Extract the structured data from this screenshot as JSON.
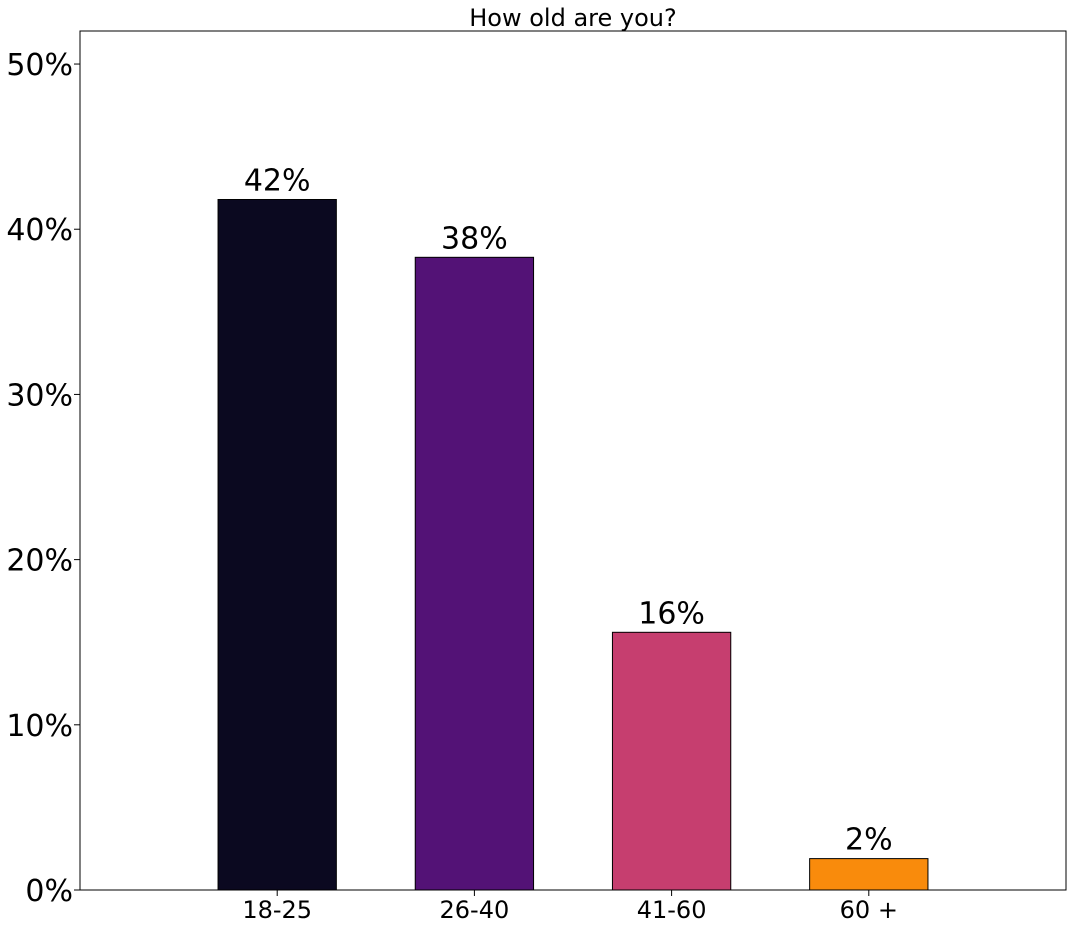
{
  "chart_data": {
    "type": "bar",
    "title": "How old are you?",
    "xlabel": "",
    "ylabel": "",
    "categories": [
      "18-25",
      "26-40",
      "41-60",
      "60 +"
    ],
    "values": [
      41.8,
      38.3,
      15.6,
      1.9
    ],
    "data_labels": [
      "42%",
      "38%",
      "16%",
      "2%"
    ],
    "colors": [
      "#0b0920",
      "#531276",
      "#c63e6f",
      "#f98b0c"
    ],
    "ylim": [
      0,
      52
    ],
    "yticks": [
      0,
      10,
      20,
      30,
      40,
      50
    ],
    "ytick_labels": [
      "0%",
      "10%",
      "20%",
      "30%",
      "40%",
      "50%"
    ],
    "grid": false,
    "legend": "none"
  }
}
